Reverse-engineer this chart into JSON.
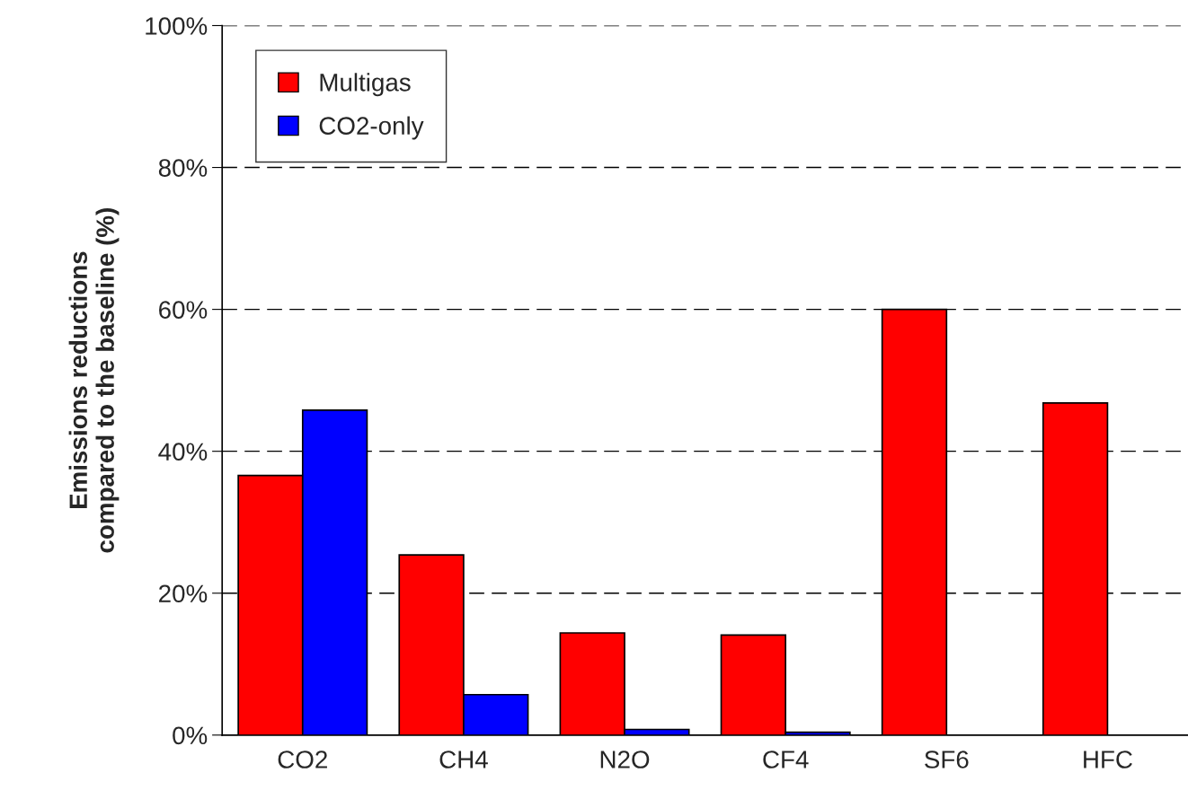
{
  "chart_data": {
    "type": "bar",
    "ylabel": "Emissions reductions\ncompared to the baseline (%)",
    "categories": [
      "CO2",
      "CH4",
      "N2O",
      "CF4",
      "SF6",
      "HFC"
    ],
    "series": [
      {
        "name": "Multigas",
        "color": "#ff0000",
        "values": [
          36.6,
          25.4,
          14.4,
          14.1,
          60,
          46.8
        ]
      },
      {
        "name": "CO2-only",
        "color": "#0000ff",
        "values": [
          45.8,
          5.7,
          0.8,
          0.4,
          0,
          0
        ]
      }
    ],
    "ylim": [
      0,
      100
    ],
    "yticks": [
      {
        "value": 0,
        "label": "0%"
      },
      {
        "value": 20,
        "label": "20%"
      },
      {
        "value": 40,
        "label": "40%"
      },
      {
        "value": 60,
        "label": "60%"
      },
      {
        "value": 80,
        "label": "80%"
      },
      {
        "value": 100,
        "label": "100%"
      }
    ],
    "grid": "y",
    "legend": "top left"
  }
}
